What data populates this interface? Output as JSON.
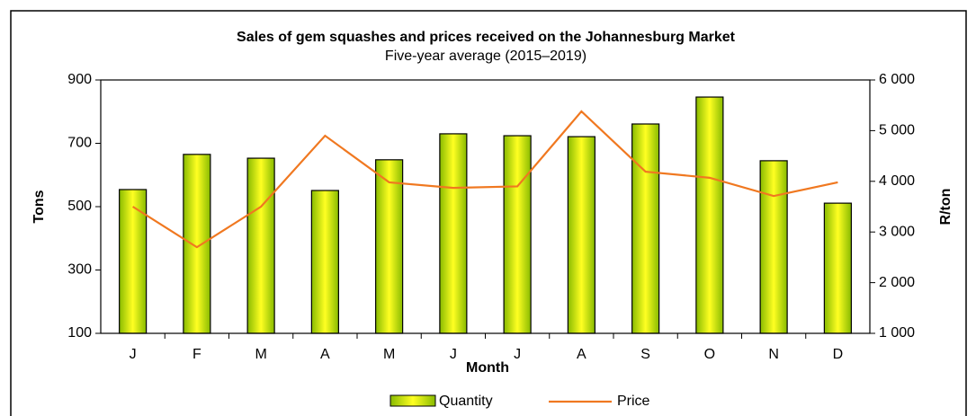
{
  "chart_data": {
    "type": "bar-line",
    "title": "Sales of gem squashes and prices received on the Johannesburg Market",
    "subtitle": "Five-year average (2015–2019)",
    "x_label": "Month",
    "y_label": "Tons",
    "y2_label": "R/ton",
    "categories": [
      "J",
      "F",
      "M",
      "A",
      "M",
      "J",
      "J",
      "A",
      "S",
      "O",
      "N",
      "D"
    ],
    "series": [
      {
        "name": "Quantity",
        "type": "bar",
        "color": "#99cc00",
        "values": [
          554,
          665,
          653,
          551,
          648,
          730,
          724,
          721,
          761,
          846,
          645,
          511
        ]
      },
      {
        "name": "Price",
        "type": "line",
        "axis": "y2",
        "color": "#f07820",
        "values": [
          3500,
          2700,
          3500,
          4900,
          3980,
          3870,
          3900,
          5380,
          4190,
          4070,
          3710,
          3980
        ]
      }
    ],
    "ylim": [
      100,
      900
    ],
    "yticks": [
      100,
      300,
      500,
      700,
      900
    ],
    "y2lim": [
      1000,
      6000
    ],
    "y2ticks": [
      {
        "value": 1000,
        "label": "1 000"
      },
      {
        "value": 2000,
        "label": "2 000"
      },
      {
        "value": 3000,
        "label": "3 000"
      },
      {
        "value": 4000,
        "label": "4 000"
      },
      {
        "value": 5000,
        "label": "5 000"
      },
      {
        "value": 6000,
        "label": "6 000"
      }
    ],
    "legend": "bottom"
  }
}
